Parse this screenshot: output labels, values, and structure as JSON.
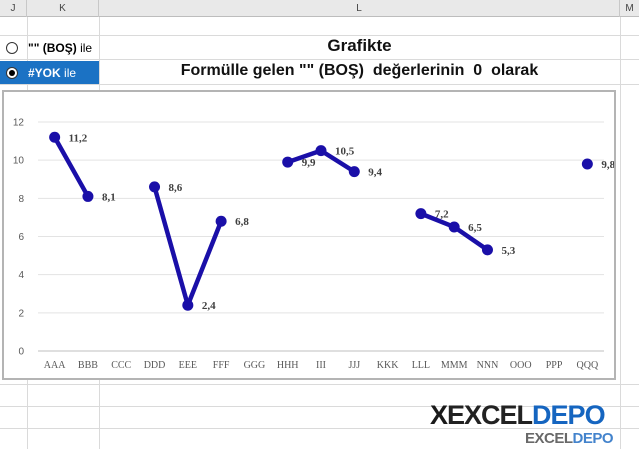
{
  "sheet": {
    "columns": [
      "J",
      "K",
      "L",
      "M"
    ]
  },
  "options": [
    {
      "prefix": "\"\" (BOŞ)",
      "suffix": "ile",
      "checked": false
    },
    {
      "prefix": "#YOK",
      "suffix": "ile",
      "checked": true
    }
  ],
  "heading": {
    "line1": "Grafikte",
    "line2": "Formülle gelen \"\" (BOŞ)  değerlerinin  0  olarak"
  },
  "chart_data": {
    "type": "line",
    "categories": [
      "AAA",
      "BBB",
      "CCC",
      "DDD",
      "EEE",
      "FFF",
      "GGG",
      "HHH",
      "III",
      "JJJ",
      "KKK",
      "LLL",
      "MMM",
      "NNN",
      "OOO",
      "PPP",
      "QQQ"
    ],
    "values": [
      11.2,
      8.1,
      null,
      8.6,
      2.4,
      6.8,
      null,
      9.9,
      10.5,
      9.4,
      null,
      7.2,
      6.5,
      5.3,
      null,
      null,
      9.8
    ],
    "data_labels": [
      "11,2",
      "8,1",
      "",
      "8,6",
      "2,4",
      "6,8",
      "",
      "9,9",
      "10,5",
      "9,4",
      "",
      "7,2",
      "6,5",
      "5,3",
      "",
      "",
      "9,8"
    ],
    "yticks": [
      "0",
      "2",
      "4",
      "6",
      "8",
      "10",
      "12"
    ],
    "ylim": [
      0,
      12
    ],
    "grid": true,
    "line_color": "#1a0fa8"
  },
  "logo": {
    "x": "X",
    "excel": "EXCEL",
    "depo": "DEPO",
    "sub_excel": "EXCEL",
    "sub_depo": "DEPO"
  }
}
